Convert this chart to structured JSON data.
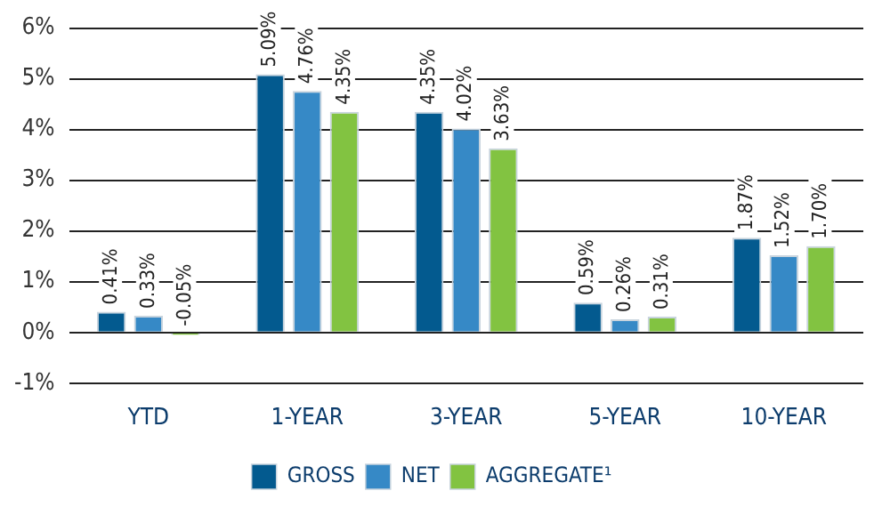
{
  "chart_data": {
    "type": "bar",
    "categories": [
      "YTD",
      "1-YEAR",
      "3-YEAR",
      "5-YEAR",
      "10-YEAR"
    ],
    "series": [
      {
        "name": "GROSS",
        "color": "#035a8f",
        "values": [
          0.41,
          5.09,
          4.35,
          0.59,
          1.87
        ],
        "value_labels": [
          "0.41%",
          "5.09%",
          "4.35%",
          "0.59%",
          "1.87%"
        ]
      },
      {
        "name": "NET",
        "color": "#3689c6",
        "values": [
          0.33,
          4.76,
          4.02,
          0.26,
          1.52
        ],
        "value_labels": [
          "0.33%",
          "4.76%",
          "4.02%",
          "0.26%",
          "1.52%"
        ]
      },
      {
        "name": "AGGREGATE¹",
        "color": "#82c341",
        "values": [
          -0.05,
          4.35,
          3.63,
          0.31,
          1.7
        ],
        "value_labels": [
          "-0.05%",
          "4.35%",
          "3.63%",
          "0.31%",
          "1.70%"
        ]
      }
    ],
    "ylim": [
      -1,
      6
    ],
    "yticks": [
      {
        "value": -1,
        "label": "-1%"
      },
      {
        "value": 0,
        "label": "0%"
      },
      {
        "value": 1,
        "label": "1%"
      },
      {
        "value": 2,
        "label": "2%"
      },
      {
        "value": 3,
        "label": "3%"
      },
      {
        "value": 4,
        "label": "4%"
      },
      {
        "value": 5,
        "label": "5%"
      },
      {
        "value": 6,
        "label": "6%"
      }
    ],
    "grid": "y",
    "legend": "bottom"
  }
}
